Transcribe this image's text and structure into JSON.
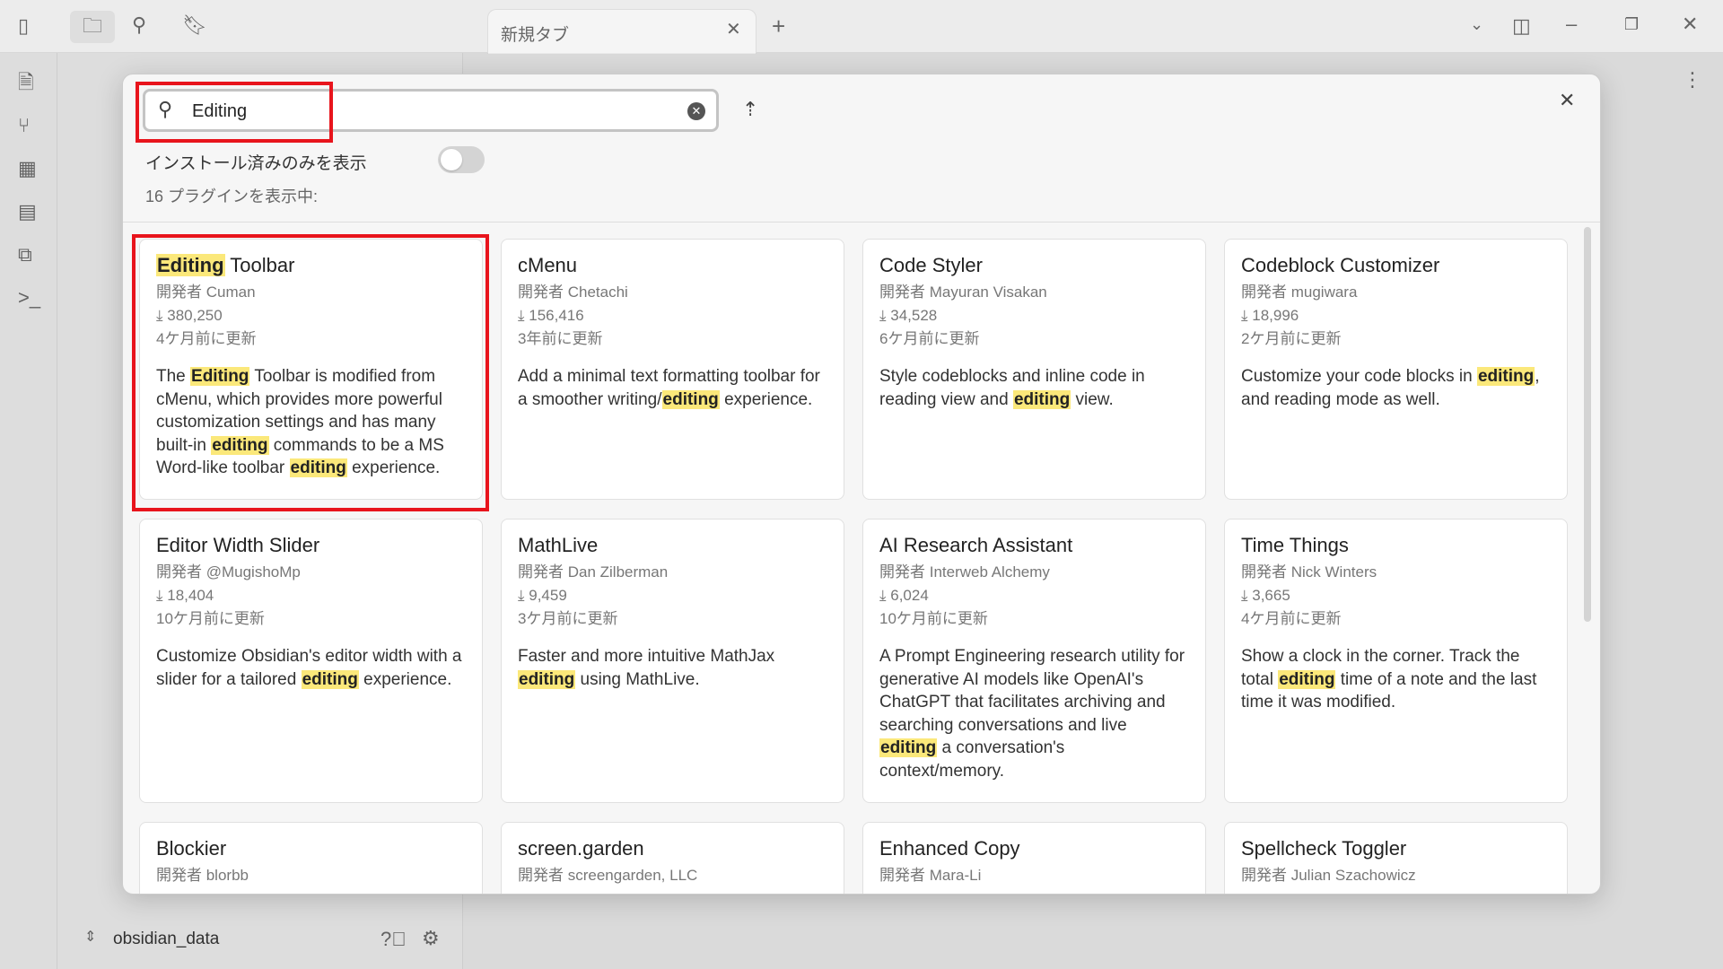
{
  "window": {
    "tab_title": "新規タブ",
    "vault_name": "obsidian_data"
  },
  "modal": {
    "search_value": "Editing",
    "toggle_label": "インストール済みのみを表示",
    "toggle_on": false,
    "count_label": "16 プラグインを表示中:",
    "plugins": [
      {
        "name": "Editing Toolbar",
        "author": "開発者 Cuman",
        "downloads": "380,250",
        "updated": "4ケ月前に更新",
        "description": "The Editing Toolbar is modified from cMenu, which provides more powerful customization settings and has many built-in editing commands to be a MS Word-like toolbar editing experience."
      },
      {
        "name": "cMenu",
        "author": "開発者 Chetachi",
        "downloads": "156,416",
        "updated": "3年前に更新",
        "description": "Add a minimal text formatting toolbar for a smoother writing/editing experience."
      },
      {
        "name": "Code Styler",
        "author": "開発者 Mayuran Visakan",
        "downloads": "34,528",
        "updated": "6ケ月前に更新",
        "description": "Style codeblocks and inline code in reading view and editing view."
      },
      {
        "name": "Codeblock Customizer",
        "author": "開発者 mugiwara",
        "downloads": "18,996",
        "updated": "2ケ月前に更新",
        "description": "Customize your code blocks in editing, and reading mode as well."
      },
      {
        "name": "Editor Width Slider",
        "author": "開発者 @MugishoMp",
        "downloads": "18,404",
        "updated": "10ケ月前に更新",
        "description": "Customize Obsidian's editor width with a slider for a tailored editing experience."
      },
      {
        "name": "MathLive",
        "author": "開発者 Dan Zilberman",
        "downloads": "9,459",
        "updated": "3ケ月前に更新",
        "description": "Faster and more intuitive MathJax editing using MathLive."
      },
      {
        "name": "AI Research Assistant",
        "author": "開発者 Interweb Alchemy",
        "downloads": "6,024",
        "updated": "10ケ月前に更新",
        "description": "A Prompt Engineering research utility for generative AI models like OpenAI's ChatGPT that facilitates archiving and searching conversations and live editing a conversation's context/memory."
      },
      {
        "name": "Time Things",
        "author": "開発者 Nick Winters",
        "downloads": "3,665",
        "updated": "4ケ月前に更新",
        "description": "Show a clock in the corner. Track the total editing time of a note and the last time it was modified."
      },
      {
        "name": "Blockier",
        "author": "開発者 blorbb",
        "downloads": "",
        "updated": "",
        "description": ""
      },
      {
        "name": "screen.garden",
        "author": "開発者 screengarden, LLC",
        "downloads": "",
        "updated": "",
        "description": ""
      },
      {
        "name": "Enhanced Copy",
        "author": "開発者 Mara-Li",
        "downloads": "",
        "updated": "",
        "description": ""
      },
      {
        "name": "Spellcheck Toggler",
        "author": "開発者 Julian Szachowicz",
        "downloads": "",
        "updated": "",
        "description": ""
      }
    ]
  },
  "colors": {
    "highlight": "#fbe87a",
    "annotation_box": "#e8141c"
  }
}
